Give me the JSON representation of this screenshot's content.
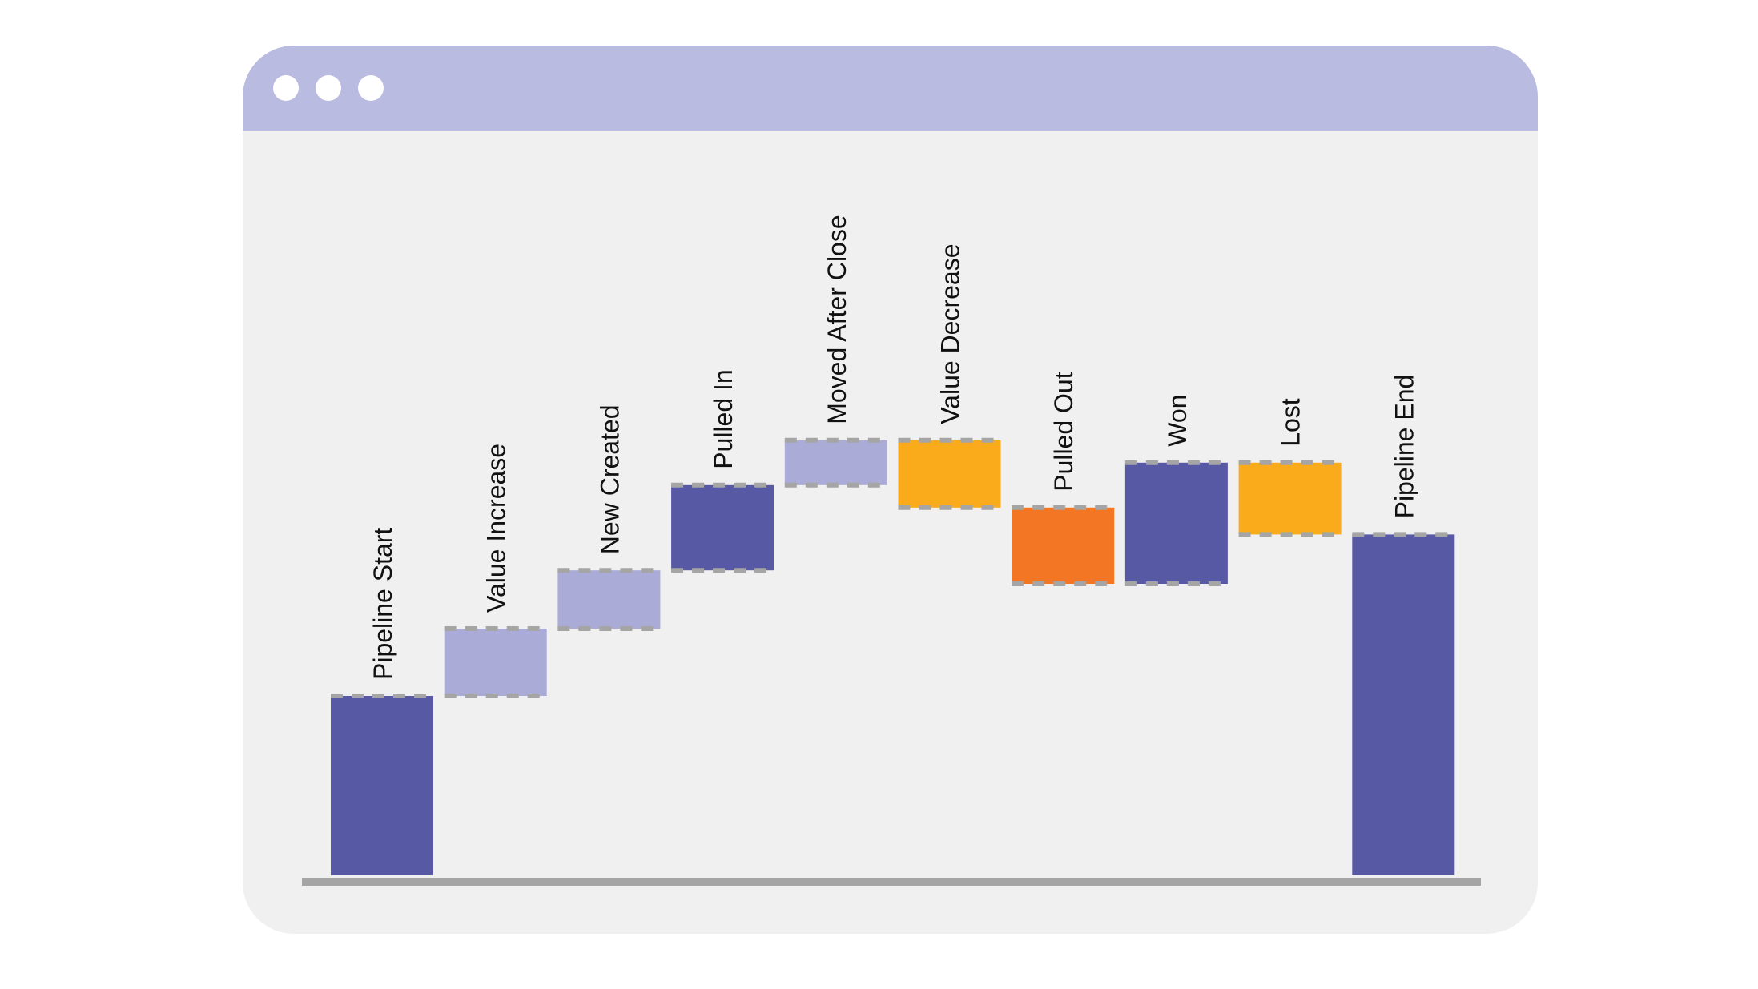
{
  "window": {
    "controls": [
      "window-dot",
      "window-dot",
      "window-dot"
    ]
  },
  "colors": {
    "titlebar": "#babbe0",
    "background": "#f0f0f0",
    "total": "#5759a5",
    "increase": "#aaabd6",
    "decrease": "#f9ab1b",
    "pulled_out": "#f27623",
    "connector": "#a5a5a5",
    "axis": "#a5a5a5",
    "label": "#111111"
  },
  "chart_data": {
    "type": "bar",
    "subtype": "waterfall",
    "title": "",
    "xlabel": "",
    "ylabel": "",
    "ylim": [
      0,
      100
    ],
    "grid": false,
    "legend": "none",
    "categories": [
      "Pipeline Start",
      "Value Increase",
      "New Created",
      "Pulled In",
      "Moved After Close",
      "Value Decrease",
      "Pulled Out",
      "Won",
      "Lost",
      "Pipeline End"
    ],
    "steps": [
      {
        "label": "Pipeline Start",
        "kind": "total",
        "start": 0,
        "end": 40
      },
      {
        "label": "Value Increase",
        "kind": "increase",
        "start": 40,
        "end": 55
      },
      {
        "label": "New Created",
        "kind": "increase",
        "start": 55,
        "end": 68
      },
      {
        "label": "Pulled In",
        "kind": "total",
        "start": 68,
        "end": 87
      },
      {
        "label": "Moved After Close",
        "kind": "increase",
        "start": 87,
        "end": 97
      },
      {
        "label": "Value Decrease",
        "kind": "decrease",
        "start": 97,
        "end": 82
      },
      {
        "label": "Pulled Out",
        "kind": "pulled_out",
        "start": 82,
        "end": 65
      },
      {
        "label": "Won",
        "kind": "total",
        "start": 65,
        "end": 92
      },
      {
        "label": "Lost",
        "kind": "decrease",
        "start": 92,
        "end": 76
      },
      {
        "label": "Pipeline End",
        "kind": "total",
        "start": 0,
        "end": 76
      }
    ]
  }
}
